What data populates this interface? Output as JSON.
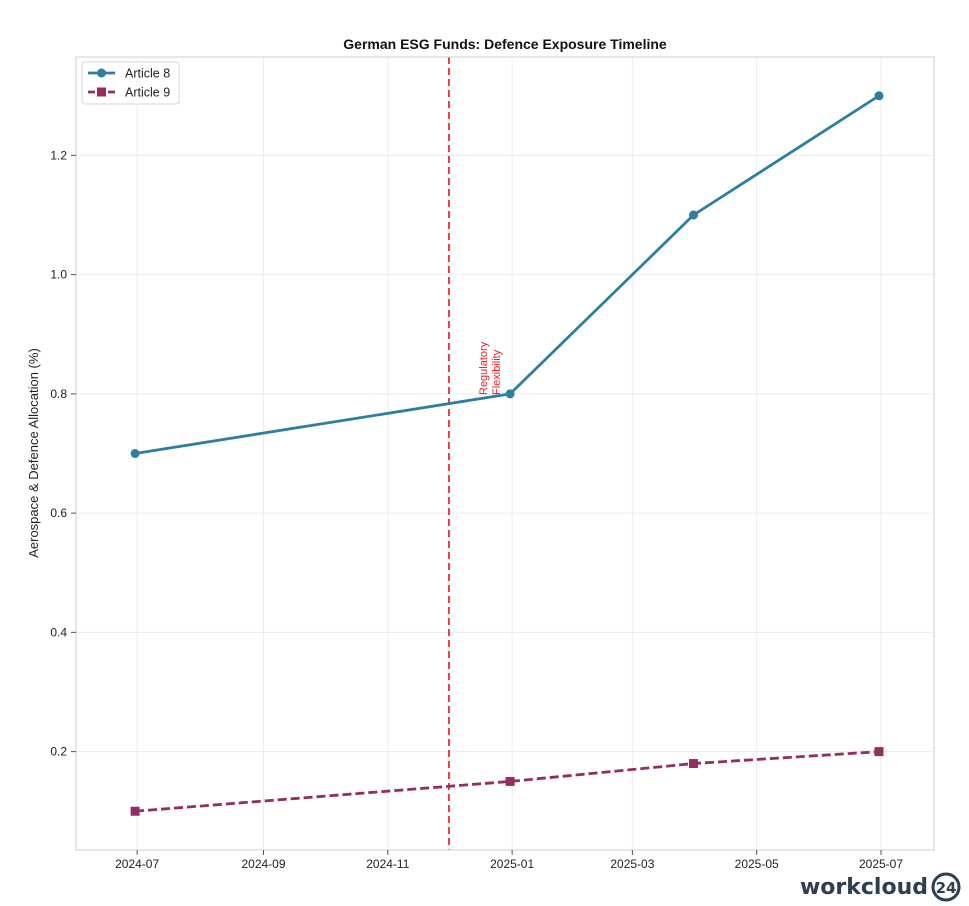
{
  "chart_data": {
    "type": "line",
    "title": "German ESG Funds: Defence Exposure Timeline",
    "xlabel": "",
    "ylabel": "Aerospace & Defence Allocation (%)",
    "x": [
      "2024-06-30",
      "2024-12-31",
      "2025-03-31",
      "2025-06-30"
    ],
    "xlim": [
      "2024-06-01",
      "2025-07-27"
    ],
    "ylim": [
      0.035,
      1.365
    ],
    "x_ticks": [
      "2024-07",
      "2024-09",
      "2024-11",
      "2025-01",
      "2025-03",
      "2025-05",
      "2025-07"
    ],
    "y_ticks": [
      "0.2",
      "0.4",
      "0.6",
      "0.8",
      "1.0",
      "1.2"
    ],
    "grid": true,
    "legend_position": "top-left",
    "series": [
      {
        "name": "Article 8",
        "values": [
          0.7,
          0.8,
          1.1,
          1.3
        ],
        "color": "#2e7ea1",
        "marker": "circle",
        "linestyle": "solid"
      },
      {
        "name": "Article 9",
        "values": [
          0.1,
          0.15,
          0.18,
          0.2
        ],
        "color": "#952d63",
        "marker": "square",
        "linestyle": "dashed"
      }
    ],
    "annotations": [
      {
        "type": "vertical-line",
        "x": "2024-12-01",
        "color": "#e8303a",
        "linestyle": "dashed",
        "label": [
          "Regulatory",
          "Flexibility"
        ]
      }
    ]
  },
  "brand": {
    "text": "workcloud",
    "logo_text": "24"
  }
}
